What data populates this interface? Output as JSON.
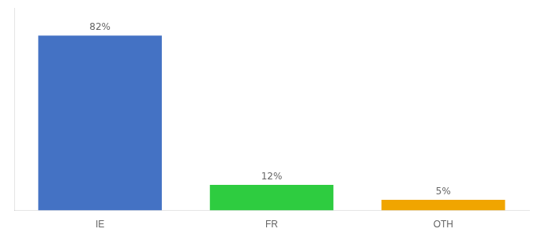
{
  "chart_data": {
    "type": "bar",
    "categories": [
      "IE",
      "FR",
      "OTH"
    ],
    "values": [
      82,
      12,
      5
    ],
    "colors": [
      "#4472c4",
      "#2ecc40",
      "#f0a500"
    ],
    "ylim": [
      0,
      95
    ],
    "grid": false,
    "data_labels": true,
    "value_labels": [
      "82%",
      "12%",
      "5%"
    ],
    "tick_labels": "x"
  }
}
